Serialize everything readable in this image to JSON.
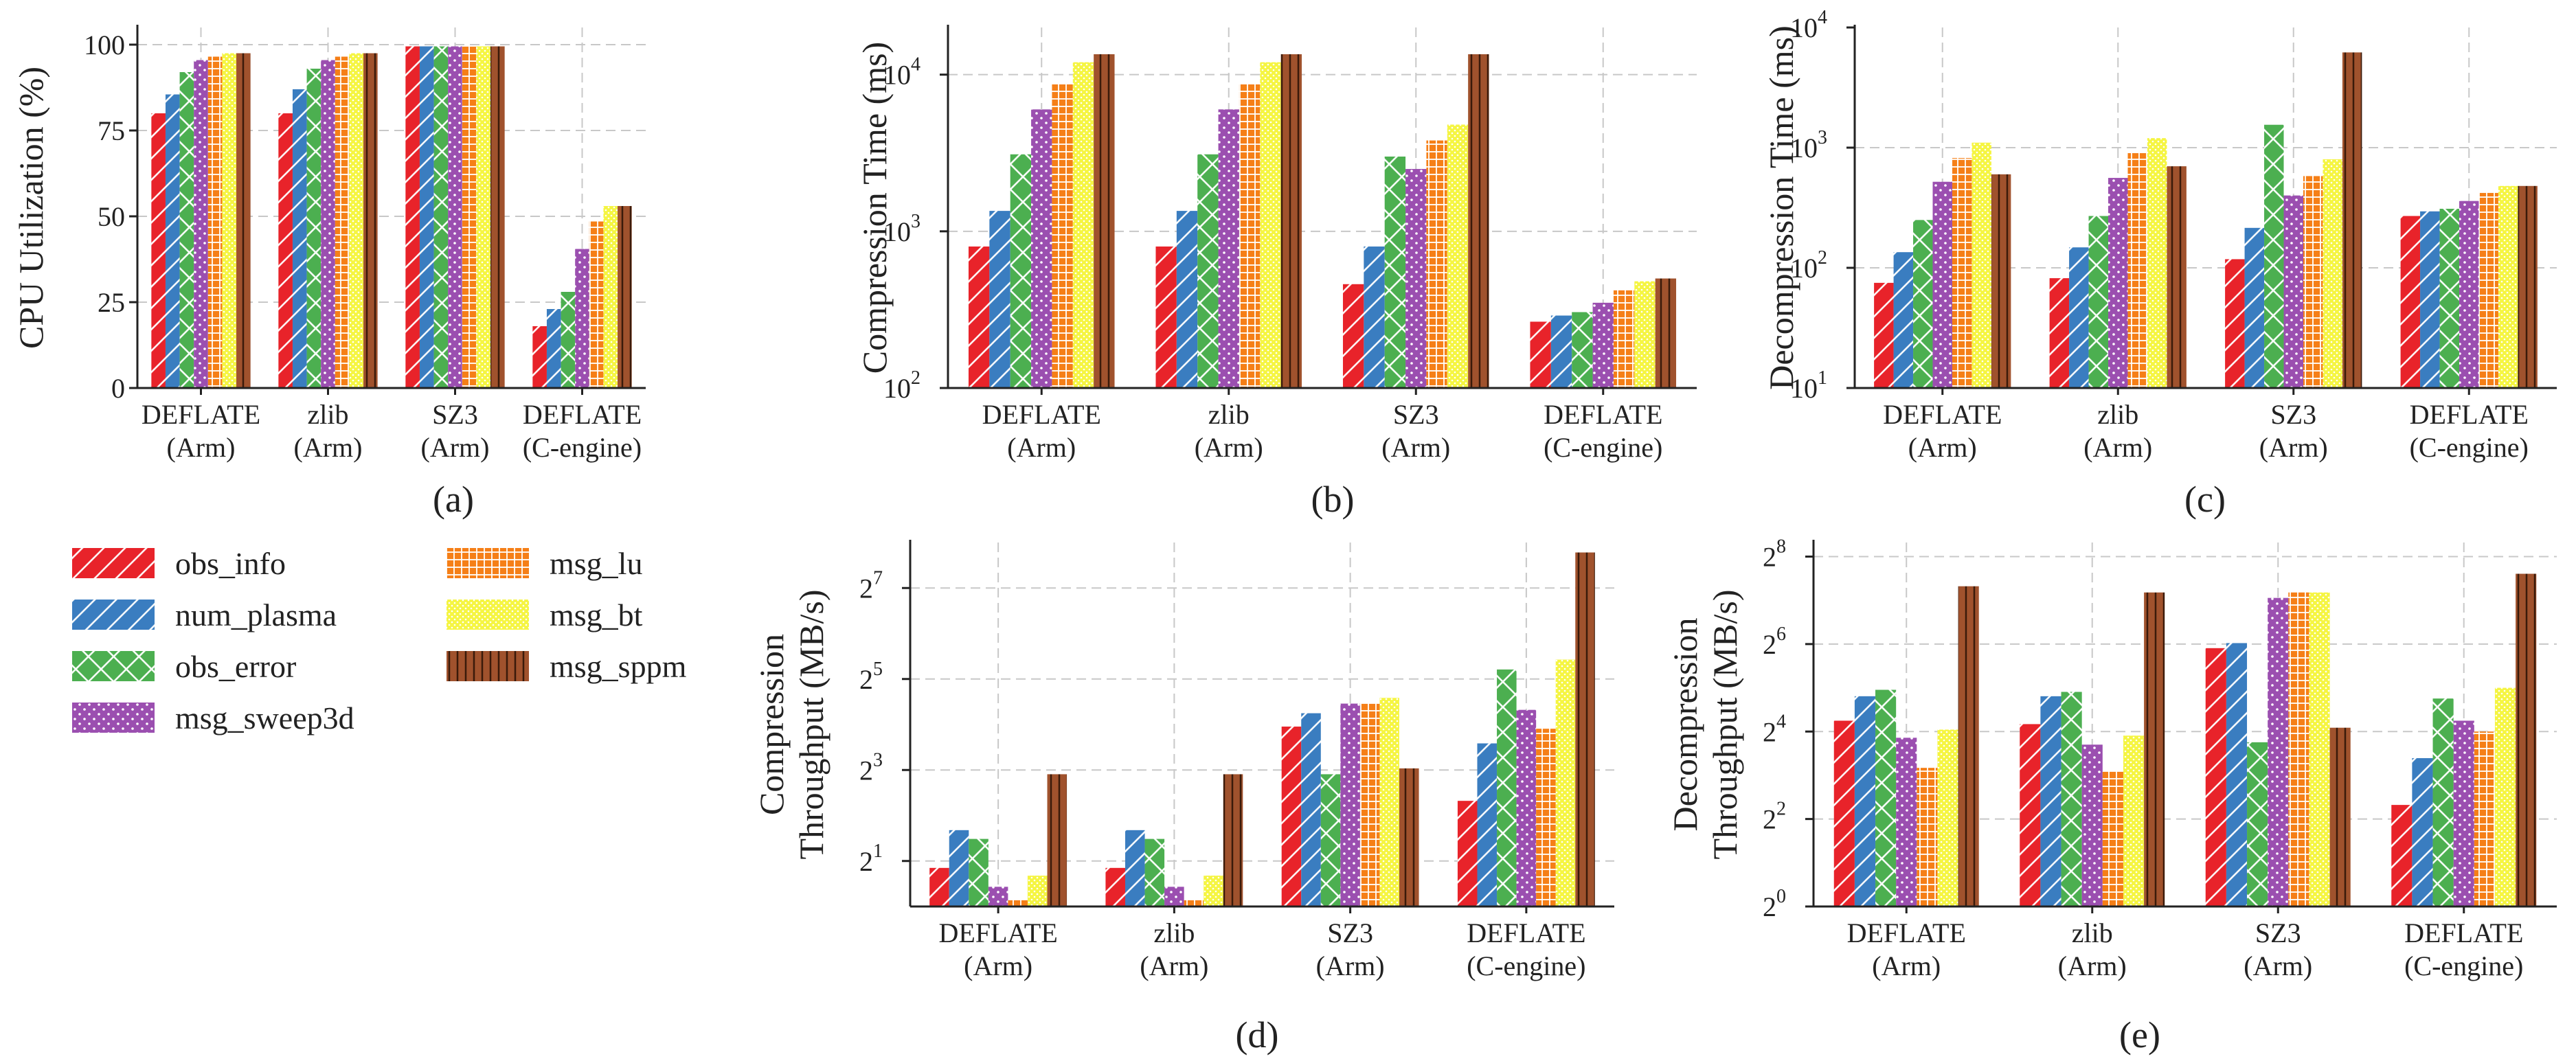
{
  "categories": [
    [
      "DEFLATE",
      "(Arm)"
    ],
    [
      "zlib",
      "(Arm)"
    ],
    [
      "SZ3",
      "(Arm)"
    ],
    [
      "DEFLATE",
      "(C-engine)"
    ]
  ],
  "legend": [
    {
      "name": "obs_info",
      "color": "#e8232a",
      "pattern": "diag"
    },
    {
      "name": "num_plasma",
      "color": "#3a7dc0",
      "pattern": "diag"
    },
    {
      "name": "obs_error",
      "color": "#4caf50",
      "pattern": "cross"
    },
    {
      "name": "msg_sweep3d",
      "color": "#9b4fb0",
      "pattern": "dots"
    },
    {
      "name": "msg_lu",
      "color": "#f57f17",
      "pattern": "grid"
    },
    {
      "name": "msg_bt",
      "color": "#f5f542",
      "pattern": "dense-dots"
    },
    {
      "name": "msg_sppm",
      "color": "#a0522d",
      "pattern": "vlines"
    }
  ],
  "chart_data": [
    {
      "panel": "(a)",
      "type": "bar",
      "ylabel": "CPU Utilization (%)",
      "yscale": "linear",
      "ylim": [
        0,
        105
      ],
      "yticks": [
        {
          "v": 0,
          "label": "0"
        },
        {
          "v": 25,
          "label": "25"
        },
        {
          "v": 50,
          "label": "50"
        },
        {
          "v": 75,
          "label": "75"
        },
        {
          "v": 100,
          "label": "100"
        }
      ],
      "grid": true,
      "series": [
        {
          "name": "obs_info",
          "values": [
            80,
            80,
            99.5,
            18
          ]
        },
        {
          "name": "num_plasma",
          "values": [
            85.5,
            87,
            99.5,
            23
          ]
        },
        {
          "name": "obs_error",
          "values": [
            92,
            93,
            99.5,
            28
          ]
        },
        {
          "name": "msg_sweep3d",
          "values": [
            95.5,
            95.5,
            99.5,
            40.5
          ]
        },
        {
          "name": "msg_lu",
          "values": [
            96.5,
            96.5,
            99.5,
            48.5
          ]
        },
        {
          "name": "msg_bt",
          "values": [
            97.5,
            97.5,
            99.5,
            53
          ]
        },
        {
          "name": "msg_sppm",
          "values": [
            97.5,
            97.5,
            99.5,
            53
          ]
        }
      ]
    },
    {
      "panel": "(b)",
      "type": "bar",
      "ylabel": "Compression Time (ms)",
      "yscale": "log10",
      "ylim": [
        100,
        20000
      ],
      "yticks": [
        {
          "v": 100,
          "base": "10",
          "exp": "2"
        },
        {
          "v": 1000,
          "base": "10",
          "exp": "3"
        },
        {
          "v": 10000,
          "base": "10",
          "exp": "4"
        }
      ],
      "grid": true,
      "series": [
        {
          "name": "obs_info",
          "values": [
            800,
            800,
            460,
            265
          ]
        },
        {
          "name": "num_plasma",
          "values": [
            1350,
            1350,
            800,
            290
          ]
        },
        {
          "name": "obs_error",
          "values": [
            3100,
            3100,
            3000,
            305
          ]
        },
        {
          "name": "msg_sweep3d",
          "values": [
            6000,
            6000,
            2500,
            350
          ]
        },
        {
          "name": "msg_lu",
          "values": [
            8800,
            8800,
            3800,
            420
          ]
        },
        {
          "name": "msg_bt",
          "values": [
            12000,
            12000,
            4800,
            480
          ]
        },
        {
          "name": "msg_sppm",
          "values": [
            13500,
            13500,
            13500,
            500
          ]
        }
      ]
    },
    {
      "panel": "(c)",
      "type": "bar",
      "ylabel": "Decompression Time (ms)",
      "yscale": "log10",
      "ylim": [
        10,
        10000
      ],
      "yticks": [
        {
          "v": 10,
          "base": "10",
          "exp": "1"
        },
        {
          "v": 100,
          "base": "10",
          "exp": "2"
        },
        {
          "v": 1000,
          "base": "10",
          "exp": "3"
        },
        {
          "v": 10000,
          "base": "10",
          "exp": "4"
        }
      ],
      "grid": true,
      "series": [
        {
          "name": "obs_info",
          "values": [
            75,
            82,
            118,
            270
          ]
        },
        {
          "name": "num_plasma",
          "values": [
            135,
            148,
            215,
            295
          ]
        },
        {
          "name": "obs_error",
          "values": [
            250,
            270,
            1550,
            310
          ]
        },
        {
          "name": "msg_sweep3d",
          "values": [
            520,
            560,
            400,
            360
          ]
        },
        {
          "name": "msg_lu",
          "values": [
            820,
            900,
            580,
            420
          ]
        },
        {
          "name": "msg_bt",
          "values": [
            1100,
            1200,
            800,
            480
          ]
        },
        {
          "name": "msg_sppm",
          "values": [
            600,
            700,
            6200,
            480
          ]
        }
      ]
    },
    {
      "panel": "(d)",
      "type": "bar",
      "ylabel": [
        "Compression",
        "Throughput (MB/s)"
      ],
      "yscale": "log2",
      "ylim": [
        1,
        256
      ],
      "yticks": [
        {
          "v": 2,
          "base": "2",
          "exp": "1"
        },
        {
          "v": 8,
          "base": "2",
          "exp": "3"
        },
        {
          "v": 32,
          "base": "2",
          "exp": "5"
        },
        {
          "v": 128,
          "base": "2",
          "exp": "7"
        }
      ],
      "grid": true,
      "series": [
        {
          "name": "obs_info",
          "values": [
            1.8,
            1.8,
            15.5,
            5
          ]
        },
        {
          "name": "num_plasma",
          "values": [
            3.2,
            3.2,
            19,
            12
          ]
        },
        {
          "name": "obs_error",
          "values": [
            2.8,
            2.8,
            7.5,
            37
          ]
        },
        {
          "name": "msg_sweep3d",
          "values": [
            1.35,
            1.35,
            22,
            20
          ]
        },
        {
          "name": "msg_lu",
          "values": [
            1.1,
            1.1,
            22,
            15
          ]
        },
        {
          "name": "msg_bt",
          "values": [
            1.6,
            1.6,
            24,
            43
          ]
        },
        {
          "name": "msg_sppm",
          "values": [
            7.5,
            7.5,
            8.2,
            220
          ]
        }
      ]
    },
    {
      "panel": "(e)",
      "type": "bar",
      "ylabel": [
        "Decompression",
        "Throughput (MB/s)"
      ],
      "yscale": "log2",
      "ylim": [
        1,
        320
      ],
      "yticks": [
        {
          "v": 1,
          "base": "2",
          "exp": "0"
        },
        {
          "v": 4,
          "base": "2",
          "exp": "2"
        },
        {
          "v": 16,
          "base": "2",
          "exp": "4"
        },
        {
          "v": 64,
          "base": "2",
          "exp": "6"
        },
        {
          "v": 256,
          "base": "2",
          "exp": "8"
        }
      ],
      "grid": true,
      "series": [
        {
          "name": "obs_info",
          "values": [
            19,
            18,
            60,
            5
          ]
        },
        {
          "name": "num_plasma",
          "values": [
            28,
            28,
            65,
            10.5
          ]
        },
        {
          "name": "obs_error",
          "values": [
            31,
            30,
            13.5,
            27
          ]
        },
        {
          "name": "msg_sweep3d",
          "values": [
            14.5,
            13,
            133,
            19
          ]
        },
        {
          "name": "msg_lu",
          "values": [
            9,
            8.5,
            145,
            16
          ]
        },
        {
          "name": "msg_bt",
          "values": [
            16.5,
            15,
            145,
            32
          ]
        },
        {
          "name": "msg_sppm",
          "values": [
            160,
            145,
            17,
            195
          ]
        }
      ]
    }
  ]
}
